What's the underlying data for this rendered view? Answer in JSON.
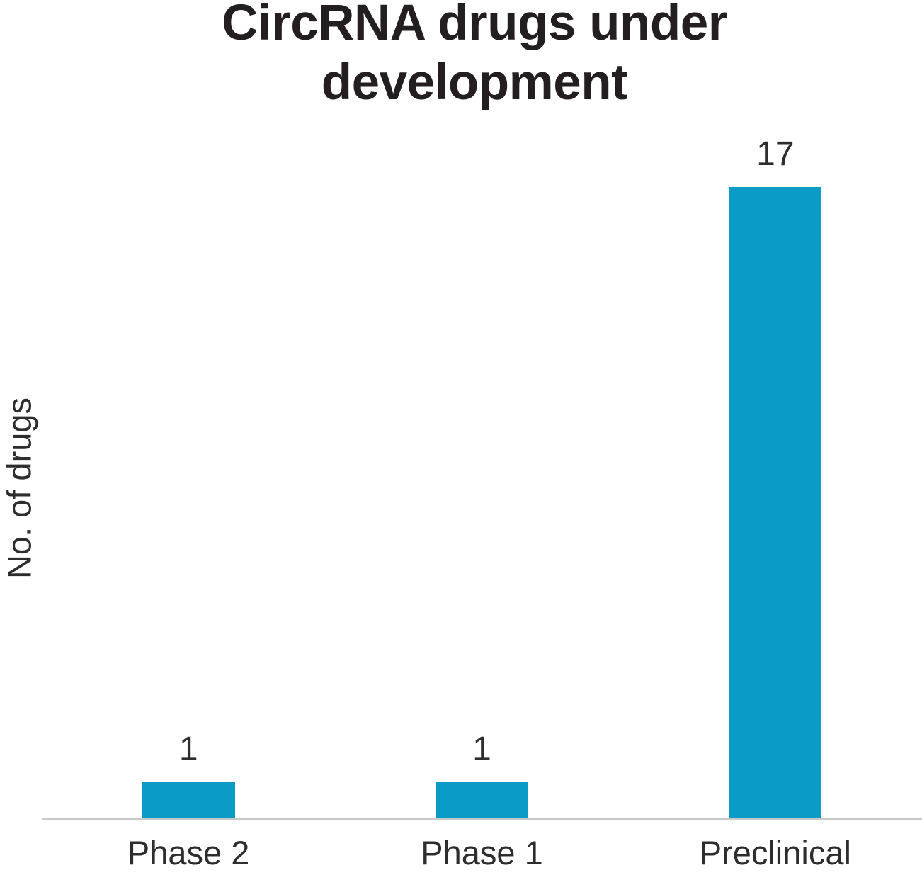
{
  "chart": {
    "title_display": "CircRNA drugs under\ndevelopment"
  },
  "chart_data": {
    "type": "bar",
    "title": "CircRNA drugs under development",
    "categories": [
      "Phase 2",
      "Phase 1",
      "Preclinical"
    ],
    "values": [
      1,
      1,
      17
    ],
    "value_labels": [
      "1",
      "1",
      "17"
    ],
    "xlabel": "",
    "ylabel": "No. of drugs",
    "ylim": [
      0,
      17
    ],
    "grid": false,
    "legend": false,
    "bar_color": "#0a9bc6",
    "axis_line_color": "#c9c9c9",
    "text_color": "#2d2d2d",
    "title_color": "#231f20"
  }
}
